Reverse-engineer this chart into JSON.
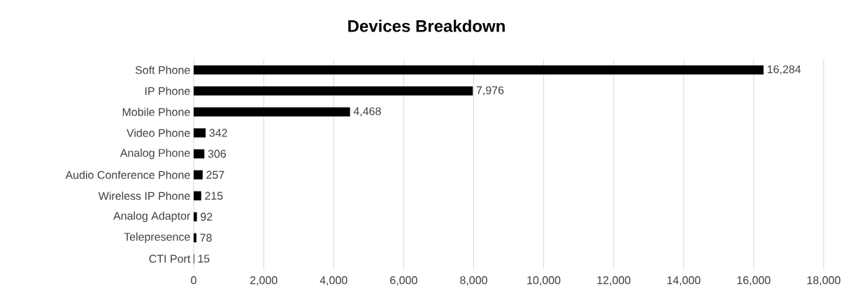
{
  "chart_data": {
    "type": "bar",
    "orientation": "horizontal",
    "title": "Devices Breakdown",
    "categories": [
      "Soft Phone",
      "IP Phone",
      "Mobile Phone",
      "Video Phone",
      "Analog Phone",
      "Audio Conference Phone",
      "Wireless IP Phone",
      "Analog Adaptor",
      "Telepresence",
      "CTI Port"
    ],
    "values": [
      16284,
      7976,
      4468,
      342,
      306,
      257,
      215,
      92,
      78,
      15
    ],
    "value_labels": [
      "16,284",
      "7,976",
      "4,468",
      "342",
      "306",
      "257",
      "215",
      "92",
      "78",
      "15"
    ],
    "color": "#000000",
    "xlim": [
      0,
      18000
    ],
    "xticks": [
      0,
      {
        "value": 2000,
        "label": "2,000"
      },
      {
        "value": 4000,
        "label": "4,000"
      },
      {
        "value": 6000,
        "label": "6,000"
      },
      {
        "value": 8000,
        "label": "8,000"
      },
      {
        "value": 10000,
        "label": "10,000"
      },
      {
        "value": 12000,
        "label": "12,000"
      },
      {
        "value": 14000,
        "label": "14,000"
      },
      {
        "value": 16000,
        "label": "16,000"
      },
      {
        "value": 18000,
        "label": "18,000"
      }
    ],
    "grid": "x"
  }
}
